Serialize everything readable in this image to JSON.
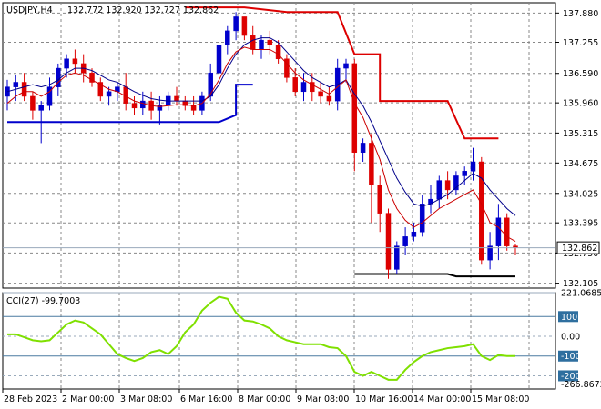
{
  "chart_data": [
    {
      "type": "candlestick",
      "title": "USDJPY,H4",
      "ohlc_readout": "132.772 132.920 132.727 132.862",
      "current_price": "132.862",
      "ylim": [
        132.0,
        138.1
      ],
      "y_ticks": [
        "137.880",
        "137.255",
        "136.590",
        "135.960",
        "135.315",
        "134.675",
        "134.025",
        "133.395",
        "132.750",
        "132.105"
      ],
      "x_labels": [
        "28 Feb 2023",
        "2 Mar 00:00",
        "3 Mar 08:00",
        "6 Mar 16:00",
        "8 Mar 00:00",
        "9 Mar 08:00",
        "10 Mar 16:00",
        "14 Mar 00:00",
        "15 Mar 08:00"
      ],
      "grid": true,
      "colors": {
        "up": "#0000cc",
        "down": "#dd0000",
        "ma_fast": "#cc0000",
        "ma_slow": "#00008b",
        "upper_band": "#dd0000",
        "lower_band": "#0000cc",
        "support": "#000000"
      },
      "candles": [
        [
          136.1,
          136.45,
          135.8,
          136.3
        ],
        [
          136.3,
          136.55,
          136.0,
          136.4
        ],
        [
          136.4,
          136.6,
          136.0,
          136.1
        ],
        [
          136.1,
          136.2,
          135.6,
          135.8
        ],
        [
          135.8,
          136.0,
          135.1,
          135.9
        ],
        [
          135.9,
          136.5,
          135.8,
          136.3
        ],
        [
          136.3,
          136.8,
          136.1,
          136.7
        ],
        [
          136.7,
          137.0,
          136.5,
          136.9
        ],
        [
          136.9,
          137.1,
          136.6,
          136.8
        ],
        [
          136.8,
          137.0,
          136.4,
          136.6
        ],
        [
          136.6,
          136.7,
          136.3,
          136.4
        ],
        [
          136.4,
          136.5,
          136.0,
          136.1
        ],
        [
          136.1,
          136.3,
          135.9,
          136.2
        ],
        [
          136.2,
          136.4,
          136.0,
          136.3
        ],
        [
          136.3,
          136.6,
          135.8,
          135.95
        ],
        [
          135.95,
          136.1,
          135.7,
          135.85
        ],
        [
          135.85,
          136.2,
          135.7,
          136.0
        ],
        [
          136.0,
          136.2,
          135.6,
          135.8
        ],
        [
          135.8,
          136.1,
          135.5,
          135.9
        ],
        [
          135.9,
          136.2,
          135.8,
          136.1
        ],
        [
          136.1,
          136.3,
          135.9,
          136.0
        ],
        [
          136.0,
          136.1,
          135.8,
          135.9
        ],
        [
          135.9,
          136.1,
          135.7,
          135.8
        ],
        [
          135.8,
          136.2,
          135.7,
          136.1
        ],
        [
          136.1,
          136.8,
          136.0,
          136.6
        ],
        [
          136.6,
          137.3,
          136.5,
          137.2
        ],
        [
          137.2,
          137.6,
          137.0,
          137.5
        ],
        [
          137.5,
          137.9,
          137.3,
          137.8
        ],
        [
          137.8,
          137.8,
          137.3,
          137.4
        ],
        [
          137.4,
          137.6,
          137.0,
          137.1
        ],
        [
          137.1,
          137.4,
          136.9,
          137.3
        ],
        [
          137.3,
          137.5,
          137.0,
          137.2
        ],
        [
          137.2,
          137.3,
          136.8,
          136.9
        ],
        [
          136.9,
          137.0,
          136.4,
          136.5
        ],
        [
          136.5,
          136.7,
          136.1,
          136.2
        ],
        [
          136.2,
          136.6,
          136.0,
          136.4
        ],
        [
          136.4,
          136.6,
          136.0,
          136.2
        ],
        [
          136.2,
          136.4,
          135.95,
          136.1
        ],
        [
          136.1,
          136.3,
          135.9,
          136.0
        ],
        [
          136.0,
          136.9,
          135.8,
          136.7
        ],
        [
          136.7,
          136.9,
          136.4,
          136.8
        ],
        [
          136.8,
          136.9,
          134.5,
          134.9
        ],
        [
          134.9,
          135.2,
          134.7,
          135.1
        ],
        [
          135.1,
          135.3,
          133.4,
          134.2
        ],
        [
          134.2,
          134.4,
          133.2,
          133.6
        ],
        [
          133.6,
          133.7,
          132.2,
          132.4
        ],
        [
          132.4,
          133.0,
          132.3,
          132.9
        ],
        [
          132.9,
          133.3,
          132.7,
          133.1
        ],
        [
          133.1,
          133.4,
          133.0,
          133.2
        ],
        [
          133.2,
          134.0,
          133.1,
          133.8
        ],
        [
          133.8,
          134.2,
          133.6,
          133.9
        ],
        [
          133.9,
          134.4,
          133.7,
          134.3
        ],
        [
          134.3,
          134.5,
          133.9,
          134.1
        ],
        [
          134.1,
          134.5,
          134.0,
          134.4
        ],
        [
          134.4,
          134.6,
          134.2,
          134.5
        ],
        [
          134.5,
          135.0,
          134.3,
          134.7
        ],
        [
          134.7,
          134.8,
          132.5,
          132.6
        ],
        [
          132.6,
          133.2,
          132.4,
          132.9
        ],
        [
          132.9,
          133.8,
          132.6,
          133.5
        ],
        [
          133.5,
          133.6,
          132.8,
          132.9
        ],
        [
          132.9,
          132.95,
          132.7,
          132.86
        ]
      ],
      "ma_fast": [
        135.95,
        136.1,
        136.2,
        136.2,
        136.1,
        136.2,
        136.4,
        136.55,
        136.6,
        136.55,
        136.45,
        136.35,
        136.25,
        136.2,
        136.1,
        136.0,
        135.95,
        135.9,
        135.88,
        135.9,
        135.92,
        135.92,
        135.9,
        135.95,
        136.15,
        136.45,
        136.8,
        137.05,
        137.15,
        137.1,
        137.1,
        137.1,
        137.0,
        136.8,
        136.6,
        136.45,
        136.35,
        136.25,
        136.15,
        136.3,
        136.45,
        135.95,
        135.65,
        135.2,
        134.75,
        134.1,
        133.7,
        133.45,
        133.3,
        133.4,
        133.55,
        133.7,
        133.8,
        133.9,
        134.0,
        134.1,
        133.8,
        133.4,
        133.3,
        133.1,
        133.0
      ],
      "ma_slow": [
        136.2,
        136.25,
        136.3,
        136.35,
        136.3,
        136.35,
        136.45,
        136.6,
        136.7,
        136.7,
        136.65,
        136.55,
        136.45,
        136.4,
        136.3,
        136.2,
        136.12,
        136.05,
        136.02,
        136.0,
        136.0,
        136.0,
        136.0,
        136.0,
        136.1,
        136.35,
        136.7,
        137.0,
        137.2,
        137.3,
        137.35,
        137.35,
        137.25,
        137.05,
        136.85,
        136.65,
        136.5,
        136.4,
        136.3,
        136.35,
        136.45,
        136.15,
        135.9,
        135.55,
        135.15,
        134.75,
        134.35,
        134.05,
        133.8,
        133.75,
        133.8,
        133.9,
        134.0,
        134.15,
        134.3,
        134.45,
        134.35,
        134.1,
        133.9,
        133.7,
        133.55
      ],
      "upper_band": [
        [
          21,
          138.0
        ],
        [
          28,
          138.0
        ],
        [
          33,
          137.9
        ],
        [
          39,
          137.9
        ],
        [
          41,
          137.0
        ],
        [
          44,
          137.0
        ],
        [
          44,
          136.0
        ],
        [
          52,
          136.0
        ],
        [
          54,
          135.2
        ],
        [
          58,
          135.2
        ]
      ],
      "lower_band": [
        [
          0,
          135.55
        ],
        [
          25,
          135.55
        ],
        [
          27,
          135.7
        ],
        [
          27,
          136.35
        ],
        [
          29,
          136.35
        ]
      ],
      "support": [
        [
          41,
          132.3
        ],
        [
          52,
          132.3
        ],
        [
          53,
          132.25
        ],
        [
          60,
          132.25
        ]
      ]
    },
    {
      "type": "line",
      "title": "CCI(27) -99.7003",
      "ylim": [
        -266.8672,
        221.0685
      ],
      "levels": [
        "221.0685",
        "100",
        "0.00",
        "-100",
        "-200",
        "-266.8672"
      ],
      "values": [
        10,
        10,
        -5,
        -20,
        -25,
        -20,
        20,
        60,
        80,
        70,
        40,
        10,
        -40,
        -90,
        -110,
        -125,
        -110,
        -80,
        -70,
        -90,
        -50,
        20,
        60,
        130,
        170,
        200,
        190,
        120,
        80,
        75,
        60,
        40,
        0,
        -20,
        -30,
        -40,
        -40,
        -40,
        -55,
        -60,
        -100,
        -180,
        -200,
        -180,
        -200,
        -220,
        -220,
        -170,
        -130,
        -100,
        -80,
        -70,
        -60,
        -55,
        -50,
        -40,
        -100,
        -120,
        -95,
        -100,
        -100
      ],
      "series_color": "#7fe000"
    }
  ]
}
